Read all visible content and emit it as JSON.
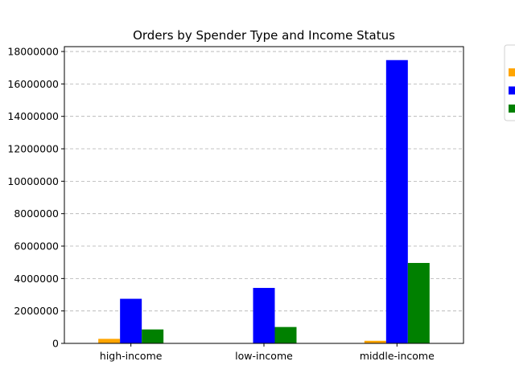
{
  "chart_data": {
    "type": "bar",
    "title": "Orders by Spender Type and Income Status",
    "xlabel": "",
    "ylabel": "",
    "categories": [
      "high-income",
      "low-income",
      "middle-income"
    ],
    "series": [
      {
        "color": "#ffa500",
        "values": [
          280000,
          0,
          160000
        ]
      },
      {
        "color": "#0000ff",
        "values": [
          2750000,
          3420000,
          17470000
        ]
      },
      {
        "color": "#008000",
        "values": [
          860000,
          1010000,
          4960000
        ]
      }
    ],
    "ylim": [
      0,
      18300000
    ],
    "yticks": [
      0,
      2000000,
      4000000,
      6000000,
      8000000,
      10000000,
      12000000,
      14000000,
      16000000,
      18000000
    ],
    "ytick_labels": [
      "0",
      "2000000",
      "4000000",
      "6000000",
      "8000000",
      "10000000",
      "12000000",
      "14000000",
      "16000000",
      "18000000"
    ],
    "grid": "y-dashed",
    "legend": "outside-right"
  }
}
